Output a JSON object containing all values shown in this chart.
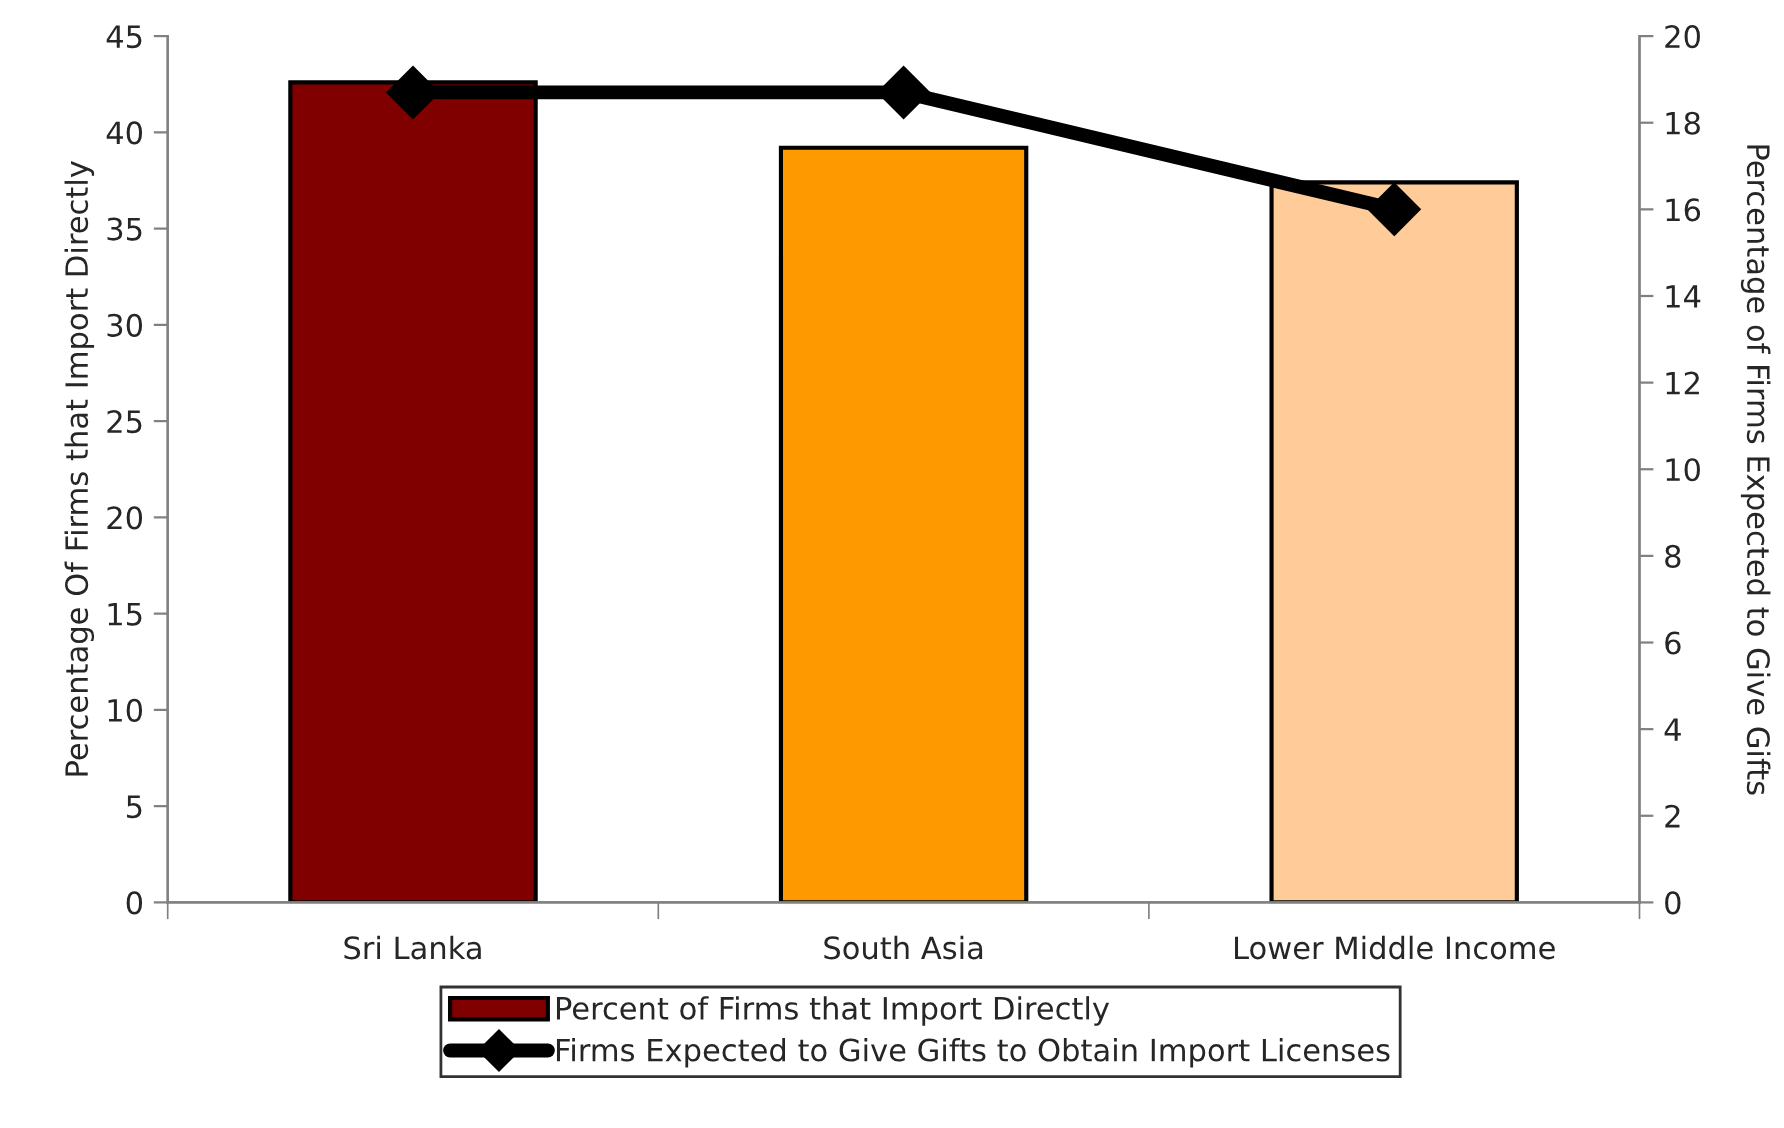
{
  "chart_data": {
    "type": "bar",
    "categories": [
      "Sri Lanka",
      "South Asia",
      "Lower Middle Income"
    ],
    "series": [
      {
        "name": "Percent of Firms that Import Directly",
        "type": "bar",
        "colors": [
          "#800000",
          "#ff9900",
          "#ffcc99"
        ],
        "values": [
          42.6,
          39.2,
          37.4
        ]
      },
      {
        "name": "Firms Expected to Give Gifts to Obtain Import Licenses",
        "type": "line",
        "axis": "y2",
        "color": "#000000",
        "marker": "diamond",
        "line_style": "solid",
        "values": [
          18.7,
          18.7,
          16.0
        ]
      }
    ],
    "ylabel": "Percentage Of Firms that Import Directly",
    "y2label": "Percentage of Firms Expected to Give Gifts",
    "ylim": [
      0,
      45
    ],
    "yticks": [
      0,
      5,
      10,
      15,
      20,
      25,
      30,
      35,
      40,
      45
    ],
    "y2lim": [
      0,
      20
    ],
    "y2ticks": [
      0,
      2,
      4,
      6,
      8,
      10,
      12,
      14,
      16,
      18,
      20
    ],
    "grid": false,
    "legend": "bottom"
  }
}
